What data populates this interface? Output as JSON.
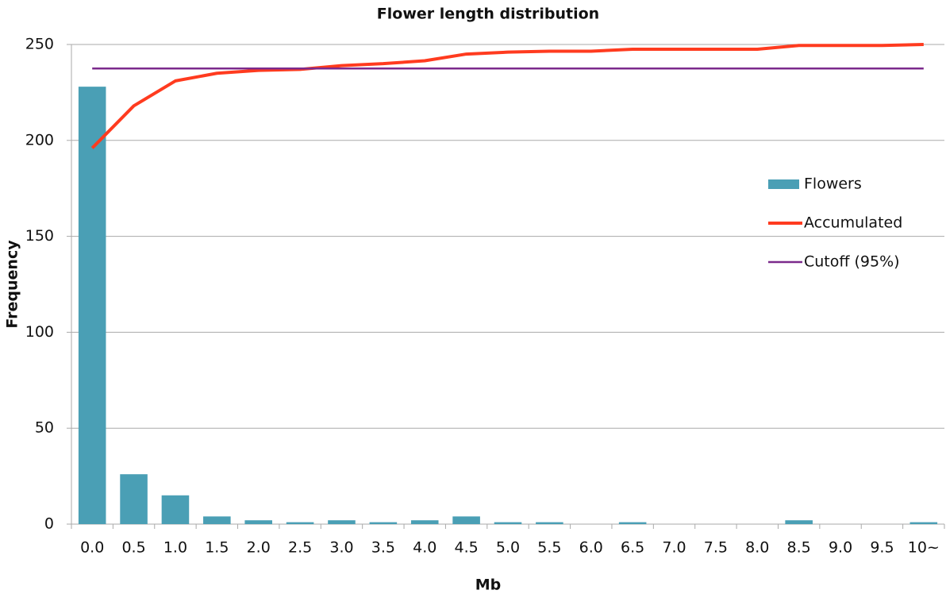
{
  "chart_data": {
    "type": "bar",
    "title": "Flower length distribution",
    "xlabel": "Mb",
    "ylabel": "Frequency",
    "categories": [
      "0.0",
      "0.5",
      "1.0",
      "1.5",
      "2.0",
      "2.5",
      "3.0",
      "3.5",
      "4.0",
      "4.5",
      "5.0",
      "5.5",
      "6.0",
      "6.5",
      "7.0",
      "7.5",
      "8.0",
      "8.5",
      "9.0",
      "9.5",
      "10~"
    ],
    "series": [
      {
        "name": "Flowers",
        "type": "bar",
        "color": "#4a9fb5",
        "values": [
          228,
          26,
          15,
          4,
          2,
          1,
          2,
          1,
          2,
          4,
          1,
          1,
          0,
          1,
          0,
          0,
          0,
          2,
          0,
          0,
          1
        ]
      },
      {
        "name": "Accumulated",
        "type": "line",
        "color": "#ff3b1f",
        "values": [
          196,
          218,
          231,
          235,
          236.5,
          237,
          239,
          240,
          241.5,
          245,
          246,
          246.5,
          246.5,
          247.5,
          247.5,
          247.5,
          247.5,
          249.5,
          249.5,
          249.5,
          250
        ]
      },
      {
        "name": "Cutoff (95%)",
        "type": "line",
        "color": "#7b2a8c",
        "values": [
          237.5,
          237.5,
          237.5,
          237.5,
          237.5,
          237.5,
          237.5,
          237.5,
          237.5,
          237.5,
          237.5,
          237.5,
          237.5,
          237.5,
          237.5,
          237.5,
          237.5,
          237.5,
          237.5,
          237.5,
          237.5
        ]
      }
    ],
    "ylim": [
      0,
      250
    ],
    "yticks": [
      0,
      50,
      100,
      150,
      200,
      250
    ],
    "grid": true,
    "legend": "right"
  }
}
